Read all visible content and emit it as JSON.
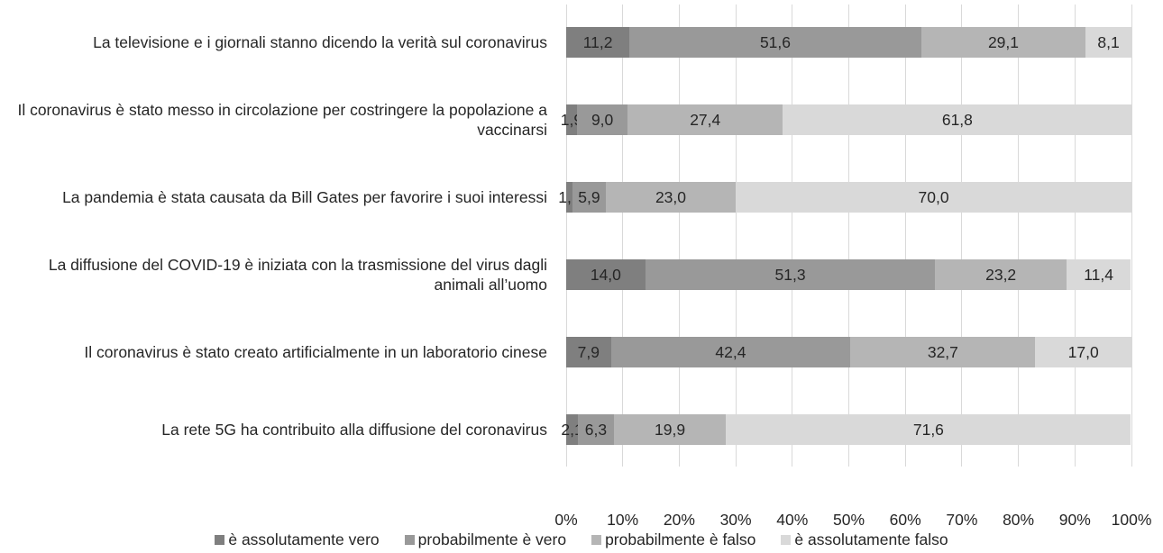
{
  "chart_data": {
    "type": "stacked_bar_horizontal",
    "categories": [
      "La televisione e i giornali stanno dicendo la verità sul coronavirus",
      "Il coronavirus è stato messo in circolazione per costringere la popolazione a vaccinarsi",
      "La pandemia è stata causata da Bill Gates per favorire i suoi interessi",
      "La diffusione del COVID-19 è iniziata con la trasmissione del virus dagli animali all’uomo",
      "Il coronavirus è stato creato artificialmente in un laboratorio cinese",
      "La rete 5G ha contribuito alla diffusione del coronavirus"
    ],
    "series": [
      {
        "name": "è assolutamente vero",
        "color": "#7f7f7f",
        "values": [
          11.2,
          1.9,
          1.1,
          14.0,
          7.9,
          2.1
        ],
        "value_labels": [
          "11,2",
          "1,9",
          "1,1",
          "14,0",
          "7,9",
          "2,1"
        ]
      },
      {
        "name": "probabilmente è vero",
        "color": "#999999",
        "values": [
          51.6,
          9.0,
          5.9,
          51.3,
          42.4,
          6.3
        ],
        "value_labels": [
          "51,6",
          "9,0",
          "5,9",
          "51,3",
          "42,4",
          "6,3"
        ]
      },
      {
        "name": "probabilmente è falso",
        "color": "#b5b5b5",
        "values": [
          29.1,
          27.4,
          23.0,
          23.2,
          32.7,
          19.9
        ],
        "value_labels": [
          "29,1",
          "27,4",
          "23,0",
          "23,2",
          "32,7",
          "19,9"
        ]
      },
      {
        "name": "è assolutamente falso",
        "color": "#d9d9d9",
        "values": [
          8.1,
          61.8,
          70.0,
          11.4,
          17.0,
          71.6
        ],
        "value_labels": [
          "8,1",
          "61,8",
          "70,0",
          "11,4",
          "17,0",
          "71,6"
        ]
      }
    ],
    "xlim": [
      0,
      100
    ],
    "xticks": [
      {
        "value": 0,
        "label": "0%"
      },
      {
        "value": 10,
        "label": "10%"
      },
      {
        "value": 20,
        "label": "20%"
      },
      {
        "value": 30,
        "label": "30%"
      },
      {
        "value": 40,
        "label": "40%"
      },
      {
        "value": 50,
        "label": "50%"
      },
      {
        "value": 60,
        "label": "60%"
      },
      {
        "value": 70,
        "label": "70%"
      },
      {
        "value": 80,
        "label": "80%"
      },
      {
        "value": 90,
        "label": "90%"
      },
      {
        "value": 100,
        "label": "100%"
      }
    ],
    "grid": true,
    "legend": "bottom"
  }
}
